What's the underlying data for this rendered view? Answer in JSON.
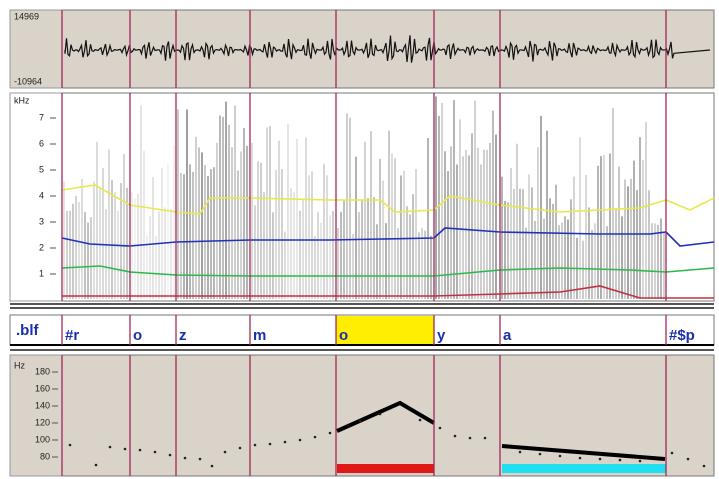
{
  "waveform": {
    "max_label": "14969",
    "min_label": "-10964"
  },
  "spectrogram": {
    "unit": "kHz",
    "ticks": [
      "7",
      "6",
      "5",
      "4",
      "3",
      "2",
      "1"
    ]
  },
  "label_tier": {
    "name": ".blf",
    "labels": [
      "#r",
      "o",
      "z",
      "m",
      "o",
      "y",
      "a",
      "#$p"
    ]
  },
  "pitch": {
    "unit": "Hz",
    "ticks": [
      "180",
      "160",
      "140",
      "120",
      "100",
      "80"
    ]
  }
}
